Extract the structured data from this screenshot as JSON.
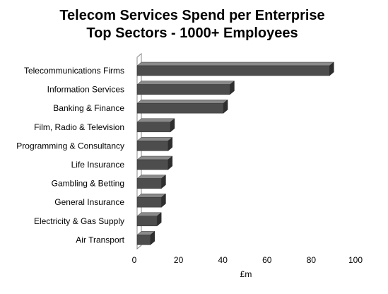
{
  "chart_data": {
    "type": "bar",
    "orientation": "horizontal",
    "title_lines": [
      "Telecom Services Spend per Enterprise",
      "Top Sectors - 1000+ Employees"
    ],
    "categories": [
      "Telecommunications Firms",
      "Information Services",
      "Banking & Finance",
      "Film, Radio & Television",
      "Programming & Consultancy",
      "Life Insurance",
      "Gambling & Betting",
      "General Insurance",
      "Electricity & Gas Supply",
      "Air Transport"
    ],
    "values": [
      87,
      42,
      39,
      15,
      14,
      14,
      11,
      11,
      9,
      6
    ],
    "xlabel": "£m",
    "ylabel": "",
    "xlim": [
      0,
      100
    ],
    "xticks": [
      "0",
      "20",
      "40",
      "60",
      "80",
      "100"
    ],
    "grid": false,
    "legend": "none",
    "colors": {
      "bar_front": "#4d4d4d",
      "bar_top": "#8a8a8a",
      "bar_side": "#2e2e2e",
      "wall": "#888888"
    }
  }
}
